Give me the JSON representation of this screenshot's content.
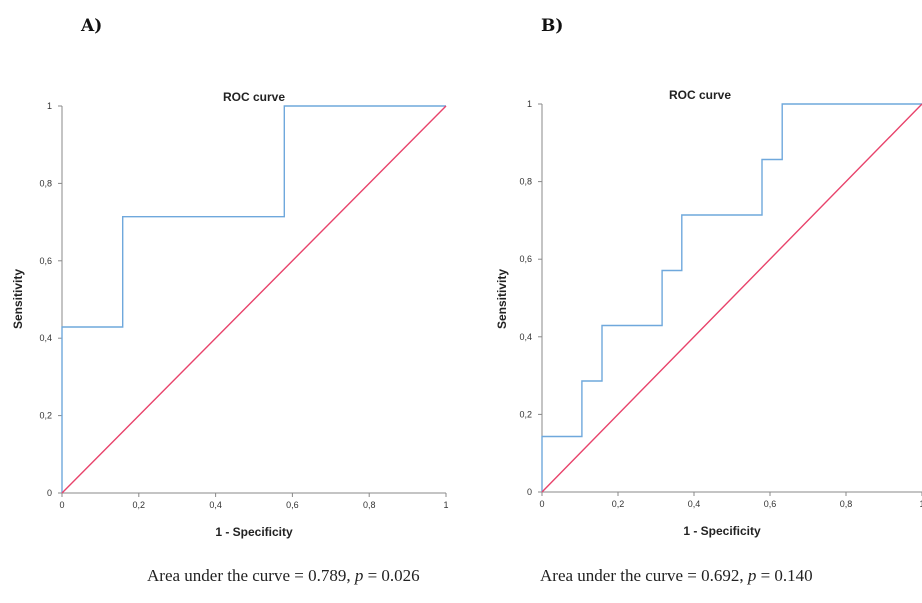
{
  "panels": [
    {
      "letter": "A)"
    },
    {
      "letter": "B)"
    }
  ],
  "captions": [
    {
      "prefix": "Area under the curve = 0.789, ",
      "p_symbol": "p",
      "suffix": " = 0.026"
    },
    {
      "prefix": "Area under the curve = 0.692, ",
      "p_symbol": "p",
      "suffix": " = 0.140"
    }
  ],
  "colors": {
    "roc": "#6fa8dc",
    "reference": "#e8436b",
    "axis": "#888888",
    "text": "#222222"
  },
  "chart_data": [
    {
      "type": "line",
      "title": "ROC curve",
      "xlabel": "1 - Specificity",
      "ylabel": "Sensitivity",
      "xlim": [
        0,
        1
      ],
      "ylim": [
        0,
        1
      ],
      "x_ticks": [
        "0",
        "0,2",
        "0,4",
        "0,6",
        "0,8",
        "1"
      ],
      "y_ticks": [
        "0",
        "0,2",
        "0,4",
        "0,6",
        "0,8",
        "1"
      ],
      "grid": false,
      "series": [
        {
          "x": [
            0,
            0,
            0.158,
            0.158,
            0.579,
            0.579,
            1
          ],
          "y": [
            0,
            0.429,
            0.429,
            0.714,
            0.714,
            1,
            1
          ],
          "step": true
        },
        {
          "x": [
            0,
            1
          ],
          "y": [
            0,
            1
          ]
        }
      ]
    },
    {
      "type": "line",
      "title": "ROC curve",
      "xlabel": "1 - Specificity",
      "ylabel": "Sensitivity",
      "xlim": [
        0,
        1
      ],
      "ylim": [
        0,
        1
      ],
      "x_ticks": [
        "0",
        "0,2",
        "0,4",
        "0,6",
        "0,8",
        "1"
      ],
      "y_ticks": [
        "0",
        "0,2",
        "0,4",
        "0,6",
        "0,8",
        "1"
      ],
      "grid": false,
      "series": [
        {
          "x": [
            0,
            0,
            0.105,
            0.105,
            0.158,
            0.158,
            0.316,
            0.316,
            0.368,
            0.368,
            0.579,
            0.579,
            0.632,
            0.632,
            1
          ],
          "y": [
            0,
            0.143,
            0.143,
            0.286,
            0.286,
            0.429,
            0.429,
            0.571,
            0.571,
            0.714,
            0.714,
            0.857,
            0.857,
            1,
            1
          ],
          "step": true
        },
        {
          "x": [
            0,
            1
          ],
          "y": [
            0,
            1
          ]
        }
      ]
    }
  ]
}
